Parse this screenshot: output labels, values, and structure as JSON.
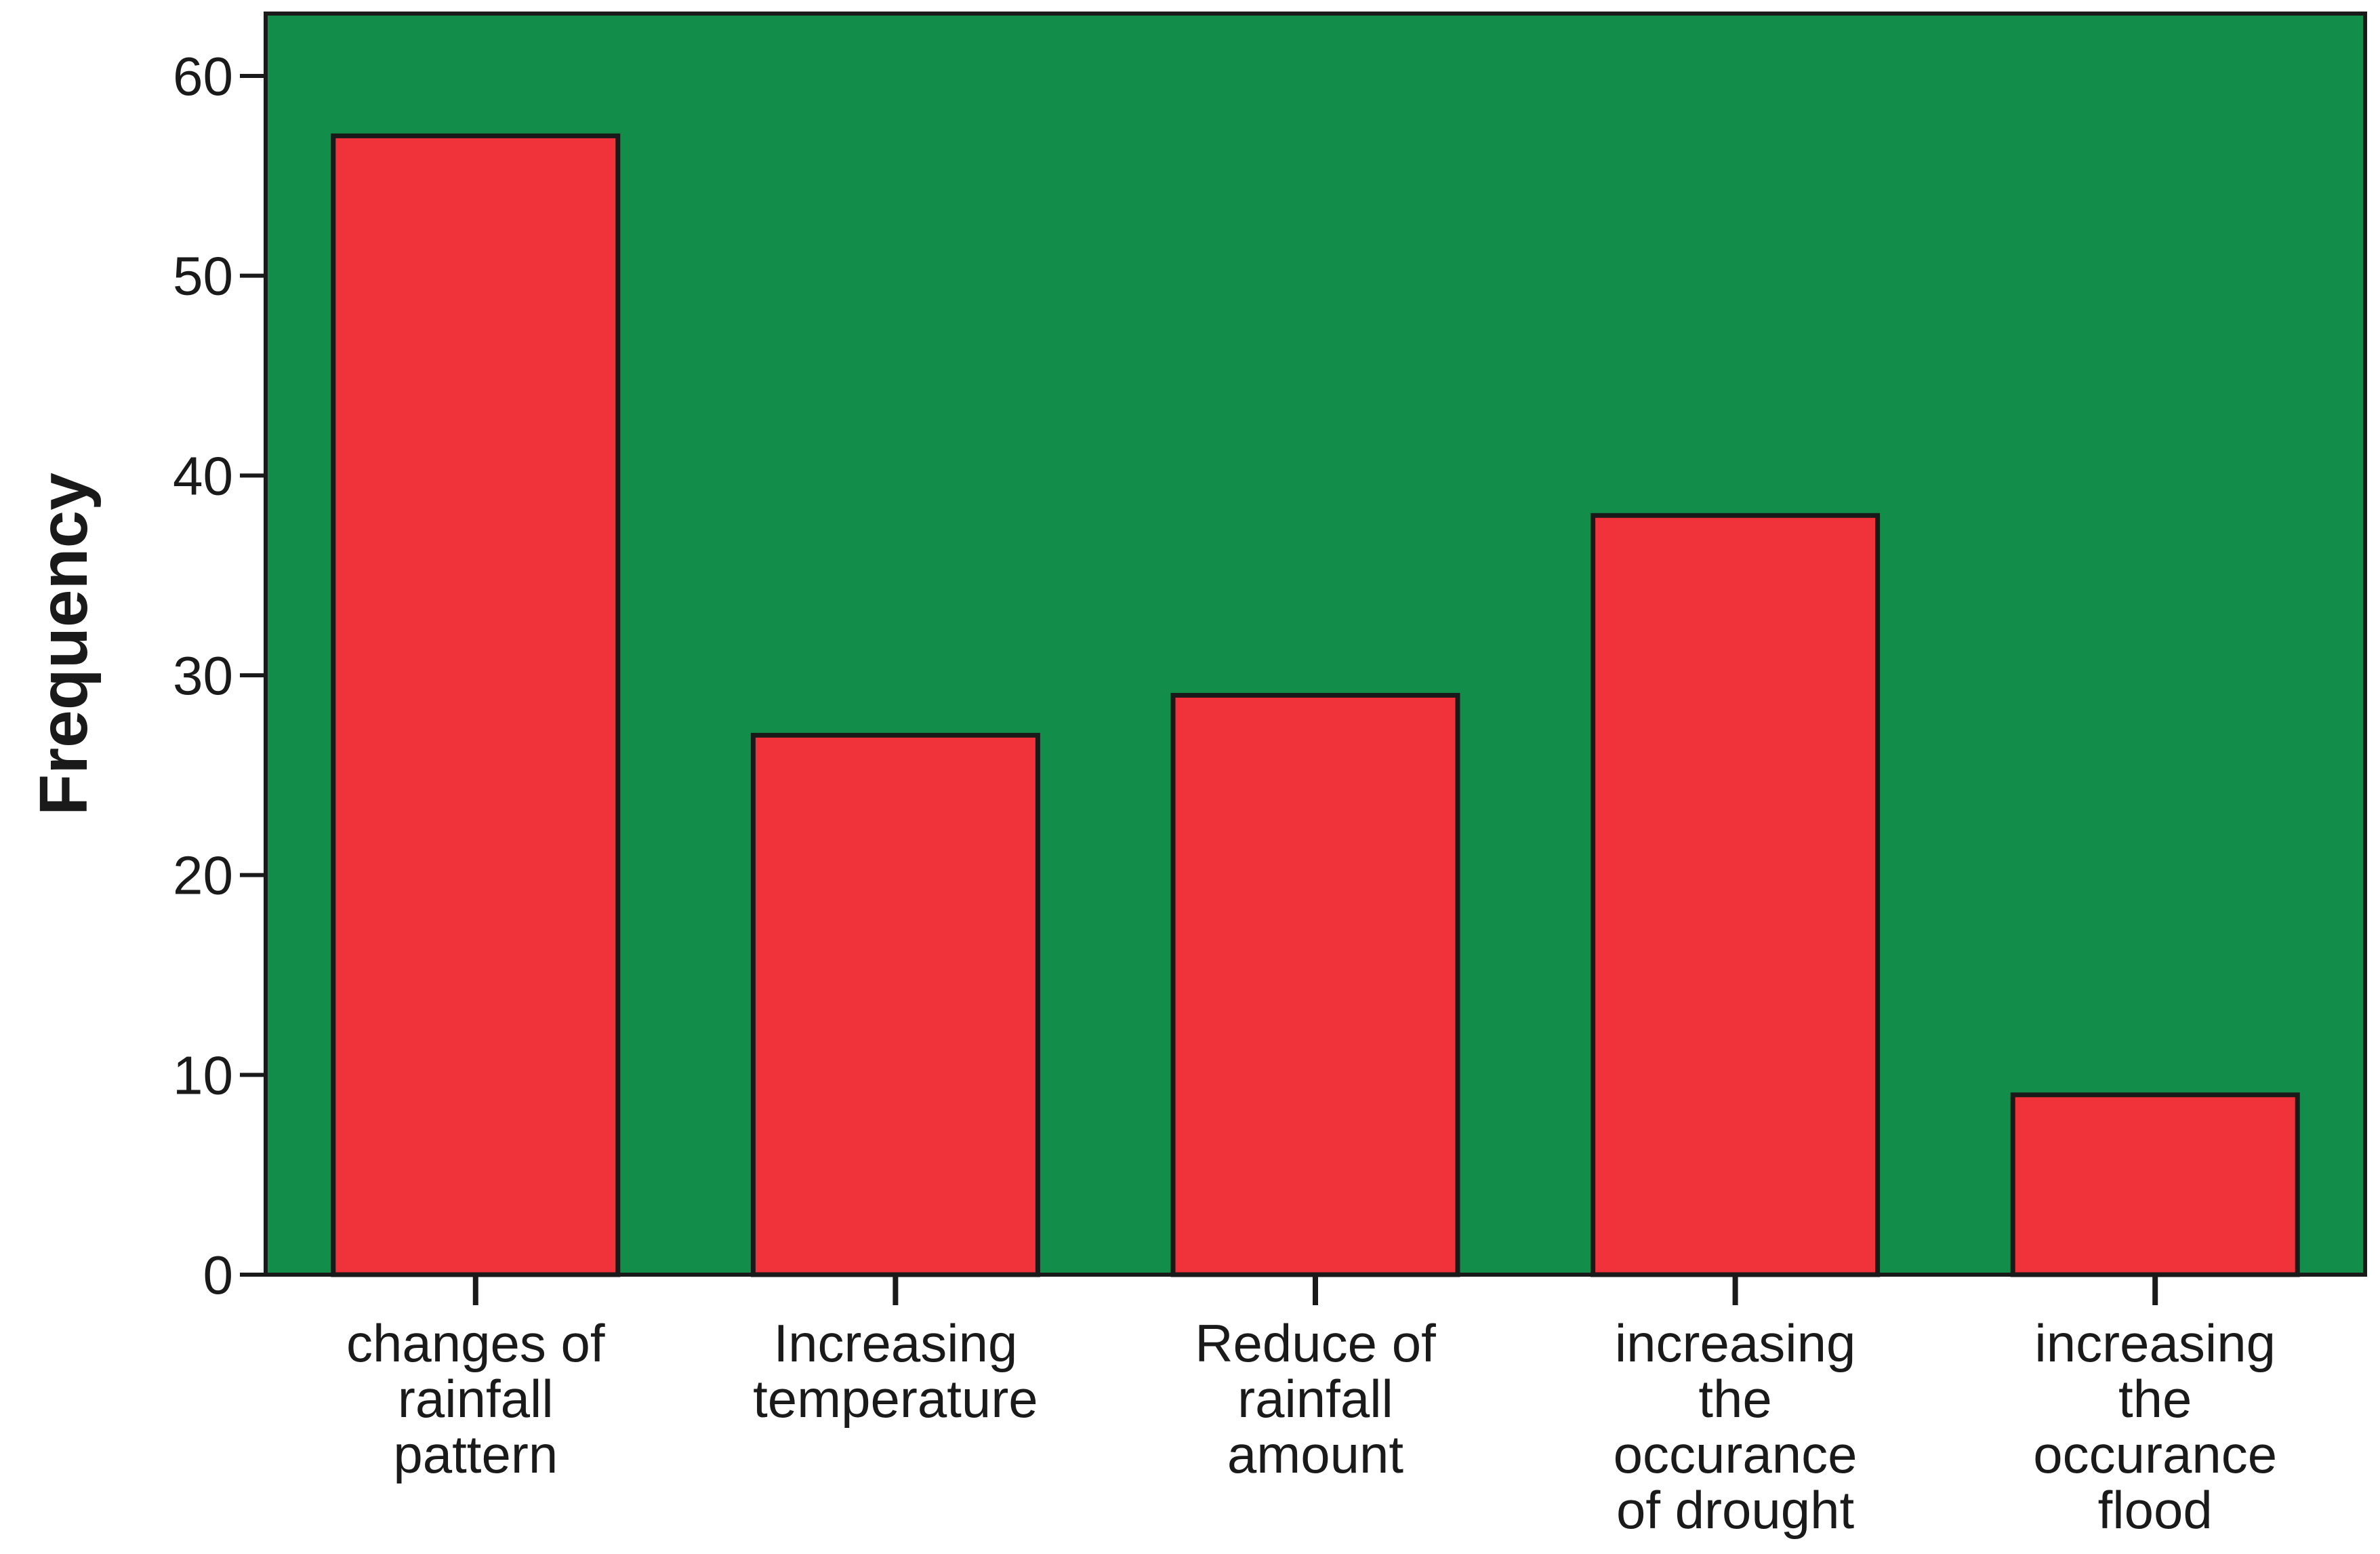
{
  "chart_data": {
    "type": "bar",
    "title": "",
    "xlabel": "",
    "ylabel": "Frequency",
    "ylim": [
      0,
      60
    ],
    "yticks": [
      0,
      10,
      20,
      30,
      40,
      50,
      60
    ],
    "categories": [
      [
        "changes of",
        "rainfall",
        "pattern"
      ],
      [
        "Increasing",
        "temperature"
      ],
      [
        "Reduce of",
        "rainfall",
        "amount"
      ],
      [
        "increasing",
        "the",
        "occurance",
        "of drought"
      ],
      [
        "increasing",
        "the",
        "occurance",
        "flood"
      ]
    ],
    "values": [
      57,
      27,
      29,
      38,
      9
    ],
    "colors": {
      "plot_background": "#128e4a",
      "bar_fill": "#f0333a",
      "bar_stroke": "#1a1a1a",
      "axis": "#1a1a1a"
    }
  }
}
